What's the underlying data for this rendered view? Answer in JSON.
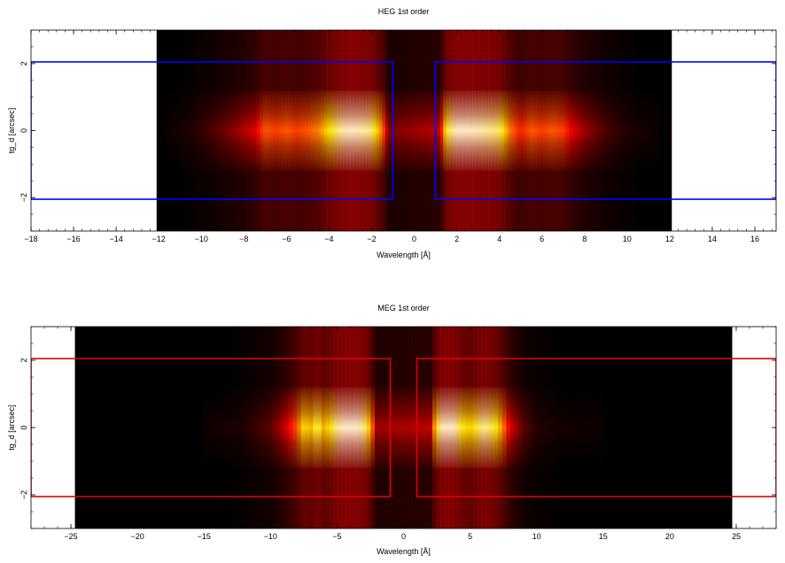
{
  "chart_data": [
    {
      "type": "heatmap",
      "title": "HEG 1st order",
      "xlabel": "Wavelength [Å]",
      "ylabel": "tg_d [arcsec]",
      "xlim": [
        -18,
        17
      ],
      "ylim": [
        -3,
        3
      ],
      "xticks": [
        -18,
        -16,
        -14,
        -12,
        -10,
        -8,
        -6,
        -4,
        -2,
        0,
        2,
        4,
        6,
        8,
        10,
        12,
        14,
        16
      ],
      "yticks": [
        -2,
        0,
        2
      ],
      "data_extent_x": [
        -12.1,
        12.1
      ],
      "region_color": "#0000ff",
      "regions": [
        {
          "x": [
            -18,
            -1
          ],
          "y": [
            -2.05,
            2.05
          ]
        },
        {
          "x": [
            1,
            17
          ],
          "y": [
            -2.05,
            2.05
          ]
        }
      ],
      "intensity_profile": {
        "x": [
          -12,
          -10.5,
          -9.5,
          -8.5,
          -7.5,
          -7,
          -6.5,
          -6,
          -5.5,
          -5,
          -4.5,
          -4,
          -3.5,
          -3,
          -2.5,
          -2,
          -1.5,
          -1.2,
          1.2,
          1.5,
          2,
          2.5,
          3,
          3.5,
          4,
          4.5,
          5,
          5.5,
          6,
          6.5,
          7,
          7.5,
          8,
          9,
          10,
          12
        ],
        "v": [
          0.01,
          0.05,
          0.12,
          0.22,
          0.35,
          0.55,
          0.5,
          0.55,
          0.5,
          0.55,
          0.62,
          0.8,
          0.95,
          1.0,
          0.98,
          0.92,
          0.6,
          0.2,
          0.3,
          0.85,
          1.0,
          1.0,
          0.98,
          0.95,
          0.9,
          0.6,
          0.45,
          0.55,
          0.5,
          0.55,
          0.5,
          0.35,
          0.25,
          0.12,
          0.05,
          0.01
        ]
      }
    },
    {
      "type": "heatmap",
      "title": "MEG 1st order",
      "xlabel": "Wavelength [Å]",
      "ylabel": "tg_d [arcsec]",
      "xlim": [
        -28,
        28
      ],
      "ylim": [
        -3,
        3
      ],
      "xticks": [
        -25,
        -20,
        -15,
        -10,
        -5,
        0,
        5,
        10,
        15,
        20,
        25
      ],
      "yticks": [
        -2,
        0,
        2
      ],
      "data_extent_x": [
        -24.7,
        24.7
      ],
      "region_color": "#e00000",
      "regions": [
        {
          "x": [
            -28,
            -1
          ],
          "y": [
            -2.05,
            2.05
          ]
        },
        {
          "x": [
            1,
            28
          ],
          "y": [
            -2.05,
            2.05
          ]
        }
      ],
      "intensity_profile": {
        "x": [
          -24,
          -15,
          -12,
          -10,
          -9,
          -8,
          -7.5,
          -7,
          -6.5,
          -6,
          -5.5,
          -5,
          -4.5,
          -4,
          -3.5,
          -3,
          -2.5,
          -2,
          2,
          2.5,
          3,
          3.5,
          4,
          4.5,
          5,
          5.5,
          6,
          6.5,
          7,
          7.5,
          8,
          9,
          10,
          12,
          15,
          24
        ],
        "v": [
          0.01,
          0.02,
          0.05,
          0.15,
          0.3,
          0.55,
          0.8,
          0.7,
          0.9,
          0.7,
          0.8,
          0.95,
          1.0,
          1.0,
          1.0,
          0.95,
          0.7,
          0.25,
          0.3,
          0.85,
          1.0,
          1.0,
          0.95,
          0.8,
          0.75,
          0.85,
          0.95,
          0.9,
          0.8,
          0.6,
          0.35,
          0.15,
          0.06,
          0.03,
          0.02,
          0.01
        ]
      }
    }
  ]
}
